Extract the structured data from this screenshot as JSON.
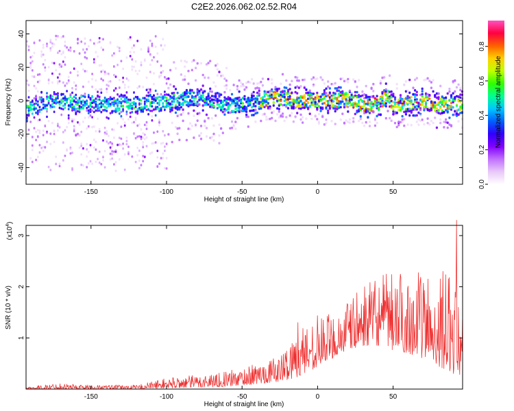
{
  "title": "C2E2.2026.062.02.52.R04",
  "chart_data": [
    {
      "type": "heatmap",
      "xlabel": "Height of straight line (km)",
      "ylabel": "Frequency (Hz)",
      "xlim": [
        -193,
        96
      ],
      "ylim": [
        -50,
        48
      ],
      "xticks": [
        -150,
        -100,
        -50,
        0,
        50
      ],
      "yticks": [
        -40,
        -20,
        0,
        20,
        40
      ],
      "colorbar": {
        "label": "Normalized spectral amplitude",
        "range": [
          0,
          0.95
        ],
        "ticks": [
          0.0,
          0.2,
          0.4,
          0.6,
          0.8
        ],
        "colormap": [
          "#ffffff",
          "#e8c8f8",
          "#c070ff",
          "#8000ff",
          "#3000ff",
          "#0060ff",
          "#00c8ff",
          "#00ff90",
          "#30ff00",
          "#c0ff00",
          "#ffd000",
          "#ff6000",
          "#ff0040",
          "#ff50c0"
        ]
      },
      "trace": [
        {
          "x": -190,
          "y": -4
        },
        {
          "x": -180,
          "y": -2
        },
        {
          "x": -170,
          "y": 0
        },
        {
          "x": -160,
          "y": -2
        },
        {
          "x": -150,
          "y": -1
        },
        {
          "x": -140,
          "y": -3
        },
        {
          "x": -130,
          "y": -2
        },
        {
          "x": -120,
          "y": -2
        },
        {
          "x": -110,
          "y": -1
        },
        {
          "x": -100,
          "y": -1
        },
        {
          "x": -90,
          "y": 1
        },
        {
          "x": -80,
          "y": 2
        },
        {
          "x": -70,
          "y": 1
        },
        {
          "x": -60,
          "y": -3
        },
        {
          "x": -50,
          "y": -2
        },
        {
          "x": -40,
          "y": -1
        },
        {
          "x": -30,
          "y": 2
        },
        {
          "x": -20,
          "y": 1
        },
        {
          "x": -10,
          "y": 0
        },
        {
          "x": 0,
          "y": 0
        },
        {
          "x": 10,
          "y": 0
        },
        {
          "x": 20,
          "y": 1
        },
        {
          "x": 30,
          "y": -3
        },
        {
          "x": 40,
          "y": -2
        },
        {
          "x": 45,
          "y": 3
        },
        {
          "x": 50,
          "y": -3
        },
        {
          "x": 60,
          "y": -2
        },
        {
          "x": 70,
          "y": 0
        },
        {
          "x": 80,
          "y": -3
        },
        {
          "x": 90,
          "y": -2
        },
        {
          "x": 96,
          "y": -3
        }
      ]
    },
    {
      "type": "line",
      "xlabel": "Height of straight line (km)",
      "ylabel": "SNR (10 * v/v)",
      "scale_label": "(x10",
      "scale_exp": "4",
      "scale_close": ")",
      "xlim": [
        -193,
        96
      ],
      "ylim": [
        0,
        3.2
      ],
      "xticks": [
        -150,
        -100,
        -50,
        0,
        50
      ],
      "yticks": [
        1,
        2,
        3
      ],
      "color": "#ee3030",
      "envelope": [
        {
          "x": -193,
          "low": 0.0,
          "high": 0.04
        },
        {
          "x": -170,
          "low": 0.0,
          "high": 0.12
        },
        {
          "x": -150,
          "low": 0.0,
          "high": 0.08
        },
        {
          "x": -120,
          "low": 0.0,
          "high": 0.08
        },
        {
          "x": -100,
          "low": 0.02,
          "high": 0.22
        },
        {
          "x": -80,
          "low": 0.03,
          "high": 0.28
        },
        {
          "x": -60,
          "low": 0.05,
          "high": 0.35
        },
        {
          "x": -40,
          "low": 0.1,
          "high": 0.5
        },
        {
          "x": -25,
          "low": 0.15,
          "high": 0.65
        },
        {
          "x": -10,
          "low": 0.25,
          "high": 1.3
        },
        {
          "x": 0,
          "low": 0.45,
          "high": 1.45
        },
        {
          "x": 10,
          "low": 0.6,
          "high": 1.5
        },
        {
          "x": 20,
          "low": 0.75,
          "high": 1.75
        },
        {
          "x": 30,
          "low": 0.85,
          "high": 2.0
        },
        {
          "x": 40,
          "low": 0.85,
          "high": 2.2
        },
        {
          "x": 50,
          "low": 0.75,
          "high": 2.3
        },
        {
          "x": 60,
          "low": 0.7,
          "high": 2.3
        },
        {
          "x": 70,
          "low": 0.6,
          "high": 2.3
        },
        {
          "x": 80,
          "low": 0.45,
          "high": 2.3
        },
        {
          "x": 90,
          "low": 0.3,
          "high": 2.3
        },
        {
          "x": 96,
          "low": 0.25,
          "high": 2.0
        }
      ],
      "spikes": [
        {
          "x": -13,
          "y": 1.3
        },
        {
          "x": -8,
          "y": 1.05
        },
        {
          "x": 83,
          "y": 2.3
        },
        {
          "x": 92,
          "y": 3.3
        }
      ]
    }
  ]
}
